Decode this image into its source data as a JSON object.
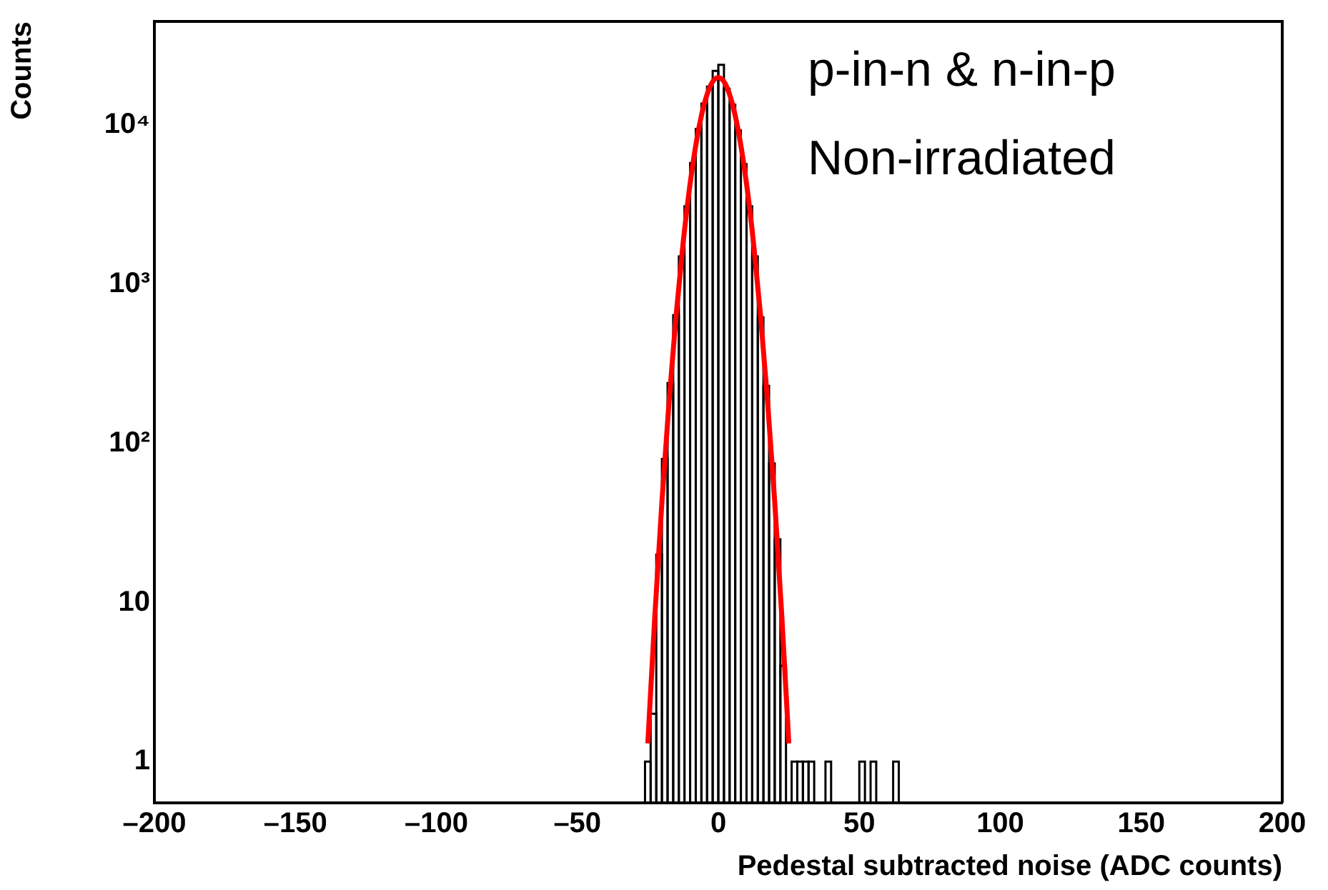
{
  "chart_data": {
    "type": "histogram",
    "xlabel": "Pedestal subtracted noise (ADC counts)",
    "ylabel": "Counts",
    "annotations": [
      "p-in-n & n-in-p",
      "Non-irradiated"
    ],
    "log": "y",
    "grid": false,
    "legend": false,
    "marker": "none",
    "xlim": [
      -200,
      200
    ],
    "xticks": [
      {
        "value": -200,
        "label": "–200"
      },
      {
        "value": -150,
        "label": "–150"
      },
      {
        "value": -100,
        "label": "–100"
      },
      {
        "value": -50,
        "label": "–50"
      },
      0,
      50,
      100,
      150,
      200
    ],
    "ylim": [
      0.55,
      45000
    ],
    "yticks": [
      1,
      10,
      {
        "value": 100,
        "label": "10²"
      },
      {
        "value": 1000,
        "label": "10³"
      },
      {
        "value": 10000,
        "label": "10⁴"
      }
    ],
    "series": [
      {
        "color": "#000000",
        "bins": [
          -26,
          -24,
          -22,
          -20,
          -18,
          -16,
          -14,
          -12,
          -10,
          -8,
          -6,
          -4,
          -2,
          0,
          2,
          4,
          6,
          8,
          10,
          12,
          14,
          16,
          18,
          20,
          22,
          24
        ],
        "values": [
          1,
          2,
          20,
          80,
          240,
          640,
          1500,
          3100,
          5800,
          9500,
          13700,
          17500,
          22000,
          24000,
          17000,
          13500,
          9300,
          5700,
          3100,
          1500,
          620,
          230,
          75,
          25,
          4
        ]
      },
      {
        "color": "#000000",
        "bins": [
          26,
          28,
          30,
          32,
          34
        ],
        "values": [
          1,
          1,
          1,
          1
        ]
      },
      {
        "color": "#000000",
        "bins": [
          38,
          40
        ],
        "values": [
          1
        ]
      },
      {
        "color": "#000000",
        "bins": [
          50,
          52
        ],
        "values": [
          1
        ]
      },
      {
        "color": "#000000",
        "bins": [
          54,
          56
        ],
        "values": [
          1
        ]
      },
      {
        "color": "#000000",
        "bins": [
          62,
          64
        ],
        "values": [
          1
        ]
      },
      {
        "type": "line",
        "color": "#ff0000",
        "x": [
          -25,
          -22.5,
          -20,
          -17.5,
          -15,
          -12.5,
          -10,
          -7.5,
          -5,
          -2.5,
          0,
          2.5,
          5,
          7.5,
          10,
          12.5,
          15,
          17.5,
          20,
          22.5,
          25
        ],
        "values": [
          1.3,
          8.3,
          43,
          180,
          630,
          1810,
          4300,
          8420,
          13600,
          18200,
          20000,
          18200,
          13600,
          8420,
          4300,
          1810,
          630,
          180,
          43,
          8.3,
          1.3
        ]
      }
    ]
  }
}
